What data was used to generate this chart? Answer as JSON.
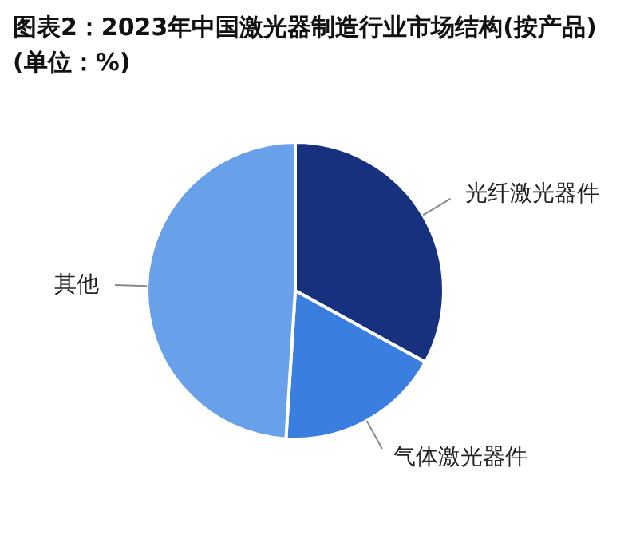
{
  "chart_data": {
    "type": "pie",
    "title": "图表2：2023年中国激光器制造行业市场结构(按产品)(单位：%)",
    "categories": [
      "光纤激光器件",
      "气体激光器件",
      "其他"
    ],
    "values": [
      33,
      18,
      49
    ],
    "colors": [
      "#17317f",
      "#3a7fe0",
      "#69a0ea"
    ],
    "legend": false
  }
}
